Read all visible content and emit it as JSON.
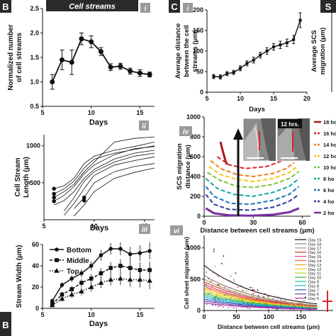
{
  "panels": {
    "B": {
      "letter": "B",
      "header_title": "Cell streams"
    },
    "C": {
      "letter": "C"
    },
    "S": {
      "letter": "S"
    }
  },
  "sublabels": {
    "i_left": "i",
    "ii": "ii",
    "iii": "iii",
    "i_right": "i",
    "iv": "iv",
    "vi": "vi"
  },
  "inset": {
    "time_label": "12 hrs."
  },
  "colors": {
    "header_bg": "#2a2a2a",
    "sublabel_bg": "#9a9a9a",
    "arrow": "#111111"
  },
  "chart_data": [
    {
      "id": "normalized-streams",
      "type": "line",
      "ylabel": "Normalized number of cell streams",
      "xlabel": "Days",
      "xlim": [
        5,
        16.5
      ],
      "ylim": [
        0.5,
        2.5
      ],
      "xticks": [
        "5",
        "10",
        "15"
      ],
      "yticks": [
        "0.5",
        "1.0",
        "1.5",
        "2.0",
        "2.5"
      ],
      "series": [
        {
          "x": [
            6,
            7,
            8,
            9,
            10,
            11,
            12,
            13,
            14,
            15,
            16
          ],
          "values": [
            1.0,
            1.45,
            1.4,
            1.88,
            1.82,
            1.62,
            1.3,
            1.32,
            1.22,
            1.18,
            1.15
          ],
          "errors": [
            0.15,
            0.2,
            0.25,
            0.12,
            0.12,
            0.08,
            0.07,
            0.06,
            0.06,
            0.07,
            0.05
          ]
        }
      ]
    },
    {
      "id": "stream-length",
      "type": "line",
      "ylabel": "Cell Stream Length (μm)",
      "xlabel": "Days",
      "xlim": [
        5,
        16
      ],
      "ylim": [
        0,
        1150
      ],
      "xticks": [
        "5",
        "10",
        "15"
      ],
      "yticks": [
        "500",
        "1000"
      ],
      "series": [
        {
          "x": [
            6,
            7,
            8,
            9,
            10,
            12,
            14,
            16
          ],
          "values": [
            420,
            460,
            560,
            760,
            860,
            940,
            990,
            1050
          ]
        },
        {
          "x": [
            6,
            7,
            8,
            9,
            10,
            12,
            14,
            16
          ],
          "values": [
            350,
            420,
            520,
            700,
            820,
            900,
            950,
            1000
          ]
        },
        {
          "x": [
            6,
            7,
            8,
            9,
            10,
            12,
            14,
            16
          ],
          "values": [
            300,
            380,
            480,
            650,
            780,
            1050,
            1100,
            1120
          ]
        },
        {
          "x": [
            6,
            7,
            8,
            9,
            10,
            12,
            14,
            16
          ],
          "values": [
            250,
            330,
            450,
            620,
            740,
            880,
            960,
            990
          ]
        },
        {
          "x": [
            6,
            7,
            8,
            9,
            10,
            12,
            14,
            16
          ],
          "values": [
            200,
            260,
            380,
            560,
            680,
            820,
            900,
            940
          ]
        },
        {
          "x": [
            7,
            8,
            9,
            10,
            12,
            14,
            16
          ],
          "values": [
            120,
            300,
            520,
            650,
            780,
            860,
            900
          ]
        },
        {
          "x": [
            7,
            8,
            9,
            10,
            12,
            14,
            16
          ],
          "values": [
            60,
            220,
            420,
            600,
            740,
            800,
            850
          ]
        },
        {
          "x": [
            8,
            9,
            10,
            12,
            14,
            16
          ],
          "values": [
            150,
            300,
            500,
            650,
            720,
            760
          ]
        },
        {
          "x": [
            8,
            9,
            10,
            12,
            14,
            16
          ],
          "values": [
            50,
            200,
            380,
            560,
            640,
            700
          ]
        }
      ],
      "markers": {
        "x": [
          6,
          6,
          6,
          6,
          9,
          9
        ],
        "values": [
          420,
          350,
          300,
          250,
          300,
          260
        ]
      }
    },
    {
      "id": "stream-width",
      "type": "line",
      "ylabel": "Stream Width (μm)",
      "xlabel": "Days",
      "xlim": [
        5,
        16.5
      ],
      "ylim": [
        0,
        60
      ],
      "xticks": [
        "5",
        "10",
        "15"
      ],
      "yticks": [
        "0",
        "20",
        "40",
        "60"
      ],
      "legend_position": "top-left",
      "series": [
        {
          "name": "Bottom",
          "marker": "circle",
          "dash": "solid",
          "x": [
            6,
            7,
            8,
            9,
            10,
            11,
            12,
            13,
            14,
            15,
            16
          ],
          "values": [
            7,
            22,
            28,
            33,
            40,
            50,
            56,
            56,
            51,
            52,
            54
          ]
        },
        {
          "name": "Middle",
          "marker": "square",
          "dash": "dash",
          "x": [
            6,
            7,
            8,
            9,
            10,
            11,
            12,
            13,
            14,
            15,
            16
          ],
          "values": [
            4,
            13,
            18,
            24,
            28,
            33,
            38,
            40,
            38,
            36,
            36
          ]
        },
        {
          "name": "Top",
          "marker": "triangle",
          "dash": "dot",
          "x": [
            6,
            7,
            8,
            9,
            10,
            11,
            12,
            13,
            14,
            15,
            16
          ],
          "values": [
            3,
            9,
            13,
            16,
            20,
            24,
            27,
            28,
            27,
            27,
            26
          ]
        }
      ]
    },
    {
      "id": "avg-distance",
      "type": "line",
      "ylabel": "Average distance between the cell streams (μm)",
      "xlabel": "Days",
      "xlim": [
        5,
        20
      ],
      "ylim": [
        0,
        200
      ],
      "xticks": [
        "5",
        "10",
        "15",
        "20"
      ],
      "yticks": [
        "0",
        "50",
        "100",
        "150",
        "200"
      ],
      "series": [
        {
          "x": [
            6,
            7,
            8,
            9,
            10,
            11,
            12,
            13,
            14,
            15,
            16,
            17,
            18,
            19
          ],
          "values": [
            38,
            37,
            45,
            48,
            58,
            70,
            78,
            90,
            100,
            110,
            115,
            120,
            128,
            175
          ],
          "errors": [
            5,
            5,
            5,
            5,
            6,
            6,
            7,
            7,
            8,
            8,
            9,
            9,
            10,
            18
          ]
        }
      ]
    },
    {
      "id": "scs-migration-partial",
      "type": "line",
      "ylabel": "Average SCS migration (μm)",
      "series": []
    },
    {
      "id": "scs-distance",
      "type": "line",
      "ylabel": "SCS migration distance (μm)",
      "xlabel": "Distance between cell streams (μm)",
      "xlim": [
        0,
        65
      ],
      "ylim": [
        0,
        1000
      ],
      "xticks": [
        "0",
        "30",
        "60"
      ],
      "yticks": [
        "0",
        "200",
        "400",
        "600",
        "800",
        "1000"
      ],
      "series": [
        {
          "name": "18 hours",
          "color": "#b0151a",
          "dash": "solid",
          "x": [
            10,
            11,
            12,
            13,
            14
          ],
          "values": [
            750,
            680,
            620,
            560,
            520
          ]
        },
        {
          "name": "16 hours",
          "color": "#e0242a",
          "dash": "dash",
          "x": [
            8,
            15,
            25,
            38,
            48,
            53
          ],
          "values": [
            600,
            520,
            480,
            500,
            560,
            620
          ]
        },
        {
          "name": "14 hours",
          "color": "#f07f1e",
          "dash": "dash",
          "x": [
            4,
            10,
            20,
            30,
            42,
            50,
            55
          ],
          "values": [
            560,
            480,
            420,
            400,
            430,
            480,
            540
          ]
        },
        {
          "name": "12 hours",
          "color": "#f5c818",
          "dash": "dash",
          "x": [
            3,
            10,
            20,
            30,
            42,
            52,
            57
          ],
          "values": [
            500,
            420,
            370,
            350,
            380,
            440,
            500
          ]
        },
        {
          "name": "10 hours",
          "color": "#7bc242",
          "dash": "dash",
          "x": [
            2,
            10,
            20,
            30,
            42,
            52,
            58
          ],
          "values": [
            440,
            360,
            300,
            290,
            320,
            380,
            450
          ]
        },
        {
          "name": "8 hours",
          "color": "#16a9a0",
          "dash": "dash",
          "x": [
            1,
            8,
            18,
            30,
            42,
            52,
            58
          ],
          "values": [
            380,
            280,
            220,
            200,
            240,
            300,
            380
          ]
        },
        {
          "name": "6 hours",
          "color": "#1976bf",
          "dash": "dash",
          "x": [
            1,
            6,
            16,
            28,
            42,
            52,
            58
          ],
          "values": [
            300,
            200,
            130,
            120,
            160,
            220,
            300
          ]
        },
        {
          "name": "4 hours",
          "color": "#2b3f97",
          "dash": "dash",
          "x": [
            1,
            6,
            15,
            28,
            42,
            52,
            58
          ],
          "values": [
            220,
            120,
            70,
            60,
            90,
            150,
            220
          ]
        },
        {
          "name": "2 hours",
          "color": "#7a2ea0",
          "dash": "solid",
          "x": [
            1,
            6,
            15,
            28,
            42,
            52,
            58
          ],
          "values": [
            80,
            30,
            10,
            5,
            15,
            40,
            80
          ]
        }
      ],
      "legend_labels": [
        "18 ho",
        "16 ho",
        "14 ho",
        "12 ho",
        "10 ho",
        "8 ho",
        "6 ho",
        "4 ho",
        "2 ho"
      ]
    },
    {
      "id": "cell-sheet-migration",
      "type": "scatter",
      "ylabel": "Cell sheet migration (μm)",
      "xlabel": "Distance between cell streams (μm)",
      "xlim": [
        0,
        200
      ],
      "ylim": [
        0,
        1200
      ],
      "xticks": [
        "0",
        "50",
        "100",
        "150"
      ],
      "yticks": [
        "0",
        "500",
        "1000"
      ],
      "series": [
        {
          "name": "Day 19",
          "color": "#111111",
          "fit": [
            720,
            0.011
          ]
        },
        {
          "name": "Day 18",
          "color": "#7f7f7f",
          "fit": [
            560,
            0.011
          ]
        },
        {
          "name": "Day 17",
          "color": "#b09070",
          "fit": [
            500,
            0.011
          ]
        },
        {
          "name": "Day 16",
          "color": "#c0392b",
          "fit": [
            460,
            0.011
          ]
        },
        {
          "name": "Day 15",
          "color": "#e63a8a",
          "fit": [
            420,
            0.011
          ]
        },
        {
          "name": "Day 14",
          "color": "#f26d21",
          "fit": [
            390,
            0.011
          ]
        },
        {
          "name": "Day 13",
          "color": "#f8a51c",
          "fit": [
            360,
            0.011
          ]
        },
        {
          "name": "Day 12",
          "color": "#f4d21f",
          "fit": [
            330,
            0.011
          ]
        },
        {
          "name": "Day 11",
          "color": "#b5d334",
          "fit": [
            300,
            0.011
          ]
        },
        {
          "name": "Day 10",
          "color": "#3fae49",
          "fit": [
            270,
            0.011
          ]
        },
        {
          "name": "Day 9",
          "color": "#1abc9c",
          "fit": [
            240,
            0.011
          ]
        },
        {
          "name": "Day 8",
          "color": "#29abe2",
          "fit": [
            210,
            0.011
          ]
        },
        {
          "name": "Day 7",
          "color": "#1f5fbf",
          "fit": [
            180,
            0.011
          ]
        },
        {
          "name": "Day 6",
          "color": "#6a3ea1",
          "fit": [
            150,
            0.011
          ]
        },
        {
          "name": "Day 5",
          "color": "#c02ea8",
          "fit": [
            120,
            0.011
          ]
        }
      ]
    }
  ]
}
